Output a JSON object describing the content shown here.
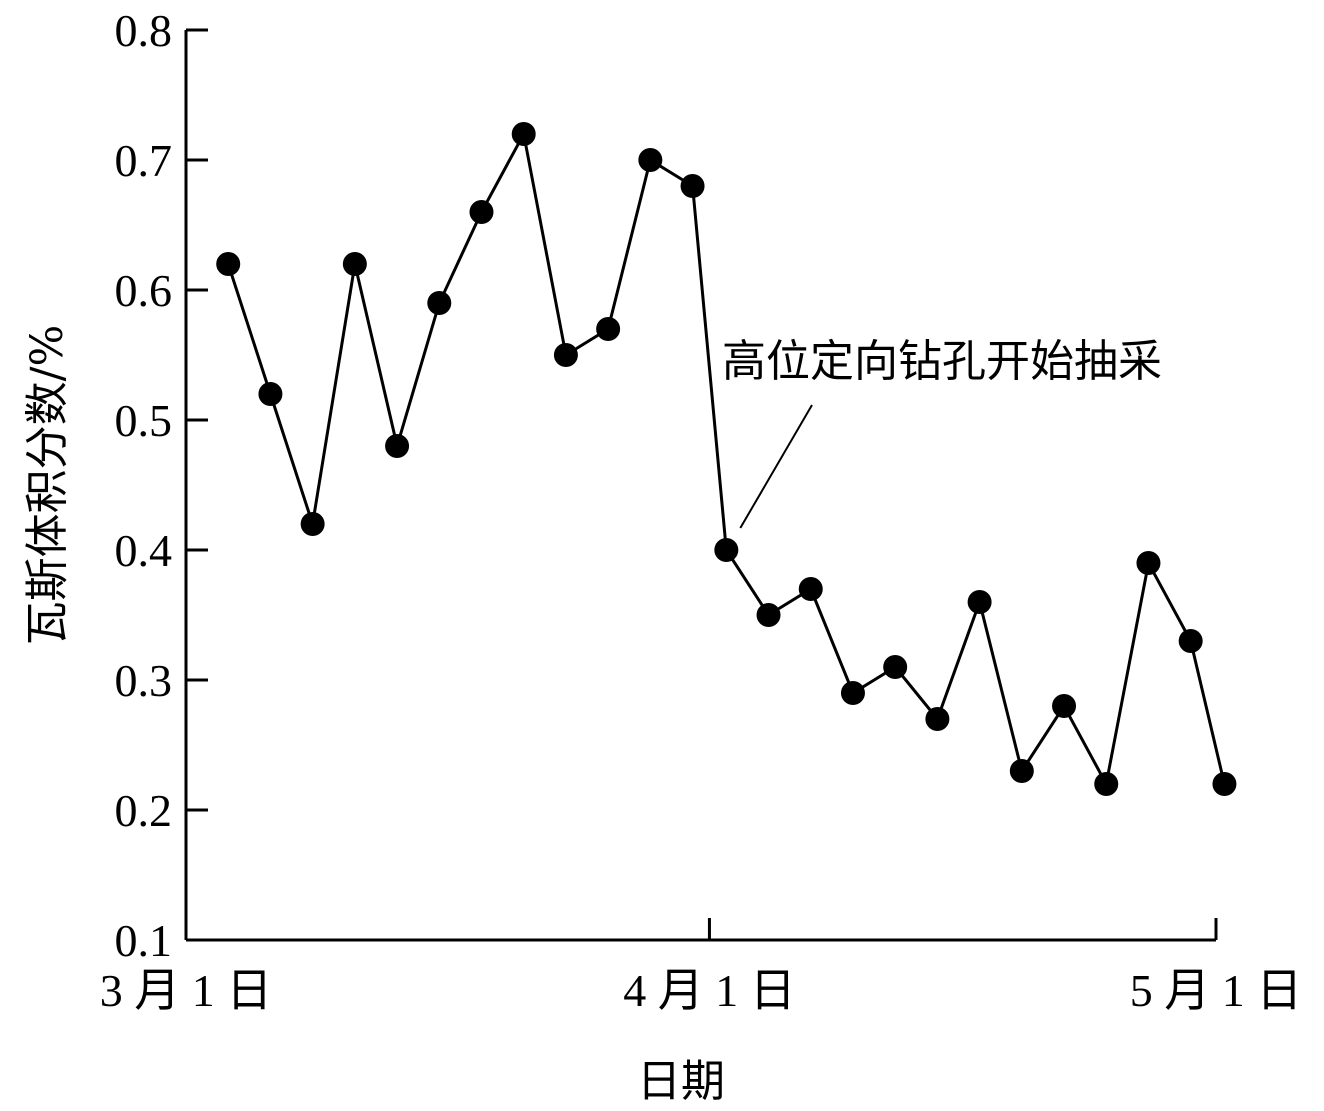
{
  "chart_data": {
    "type": "line",
    "xlabel": "日期",
    "ylabel": "瓦斯体积分数/%",
    "ylim": [
      0.1,
      0.8
    ],
    "yticks": [
      "0.1",
      "0.2",
      "0.3",
      "0.4",
      "0.5",
      "0.6",
      "0.7",
      "0.8"
    ],
    "xticks": [
      {
        "value": 0,
        "label": "3 月 1 日"
      },
      {
        "value": 31,
        "label": "4 月 1 日"
      },
      {
        "value": 61,
        "label": "5 月 1 日"
      }
    ],
    "xlim": [
      0,
      61
    ],
    "grid": false,
    "series": [
      {
        "x": [
          2.5,
          5,
          7.5,
          10,
          12.5,
          15,
          17.5,
          20,
          22.5,
          25,
          27.5,
          30,
          32,
          34.5,
          37,
          39.5,
          42,
          44.5,
          47,
          49.5,
          52,
          54.5,
          57,
          59.5,
          61.5
        ],
        "values": [
          0.62,
          0.52,
          0.42,
          0.62,
          0.48,
          0.59,
          0.66,
          0.72,
          0.55,
          0.57,
          0.7,
          0.68,
          0.4,
          0.35,
          0.37,
          0.29,
          0.31,
          0.27,
          0.36,
          0.23,
          0.28,
          0.22,
          0.39,
          0.33,
          0.22
        ]
      }
    ],
    "annotations": [
      {
        "text": "高位定向钻孔开始抽采",
        "target_index": 12
      }
    ]
  }
}
